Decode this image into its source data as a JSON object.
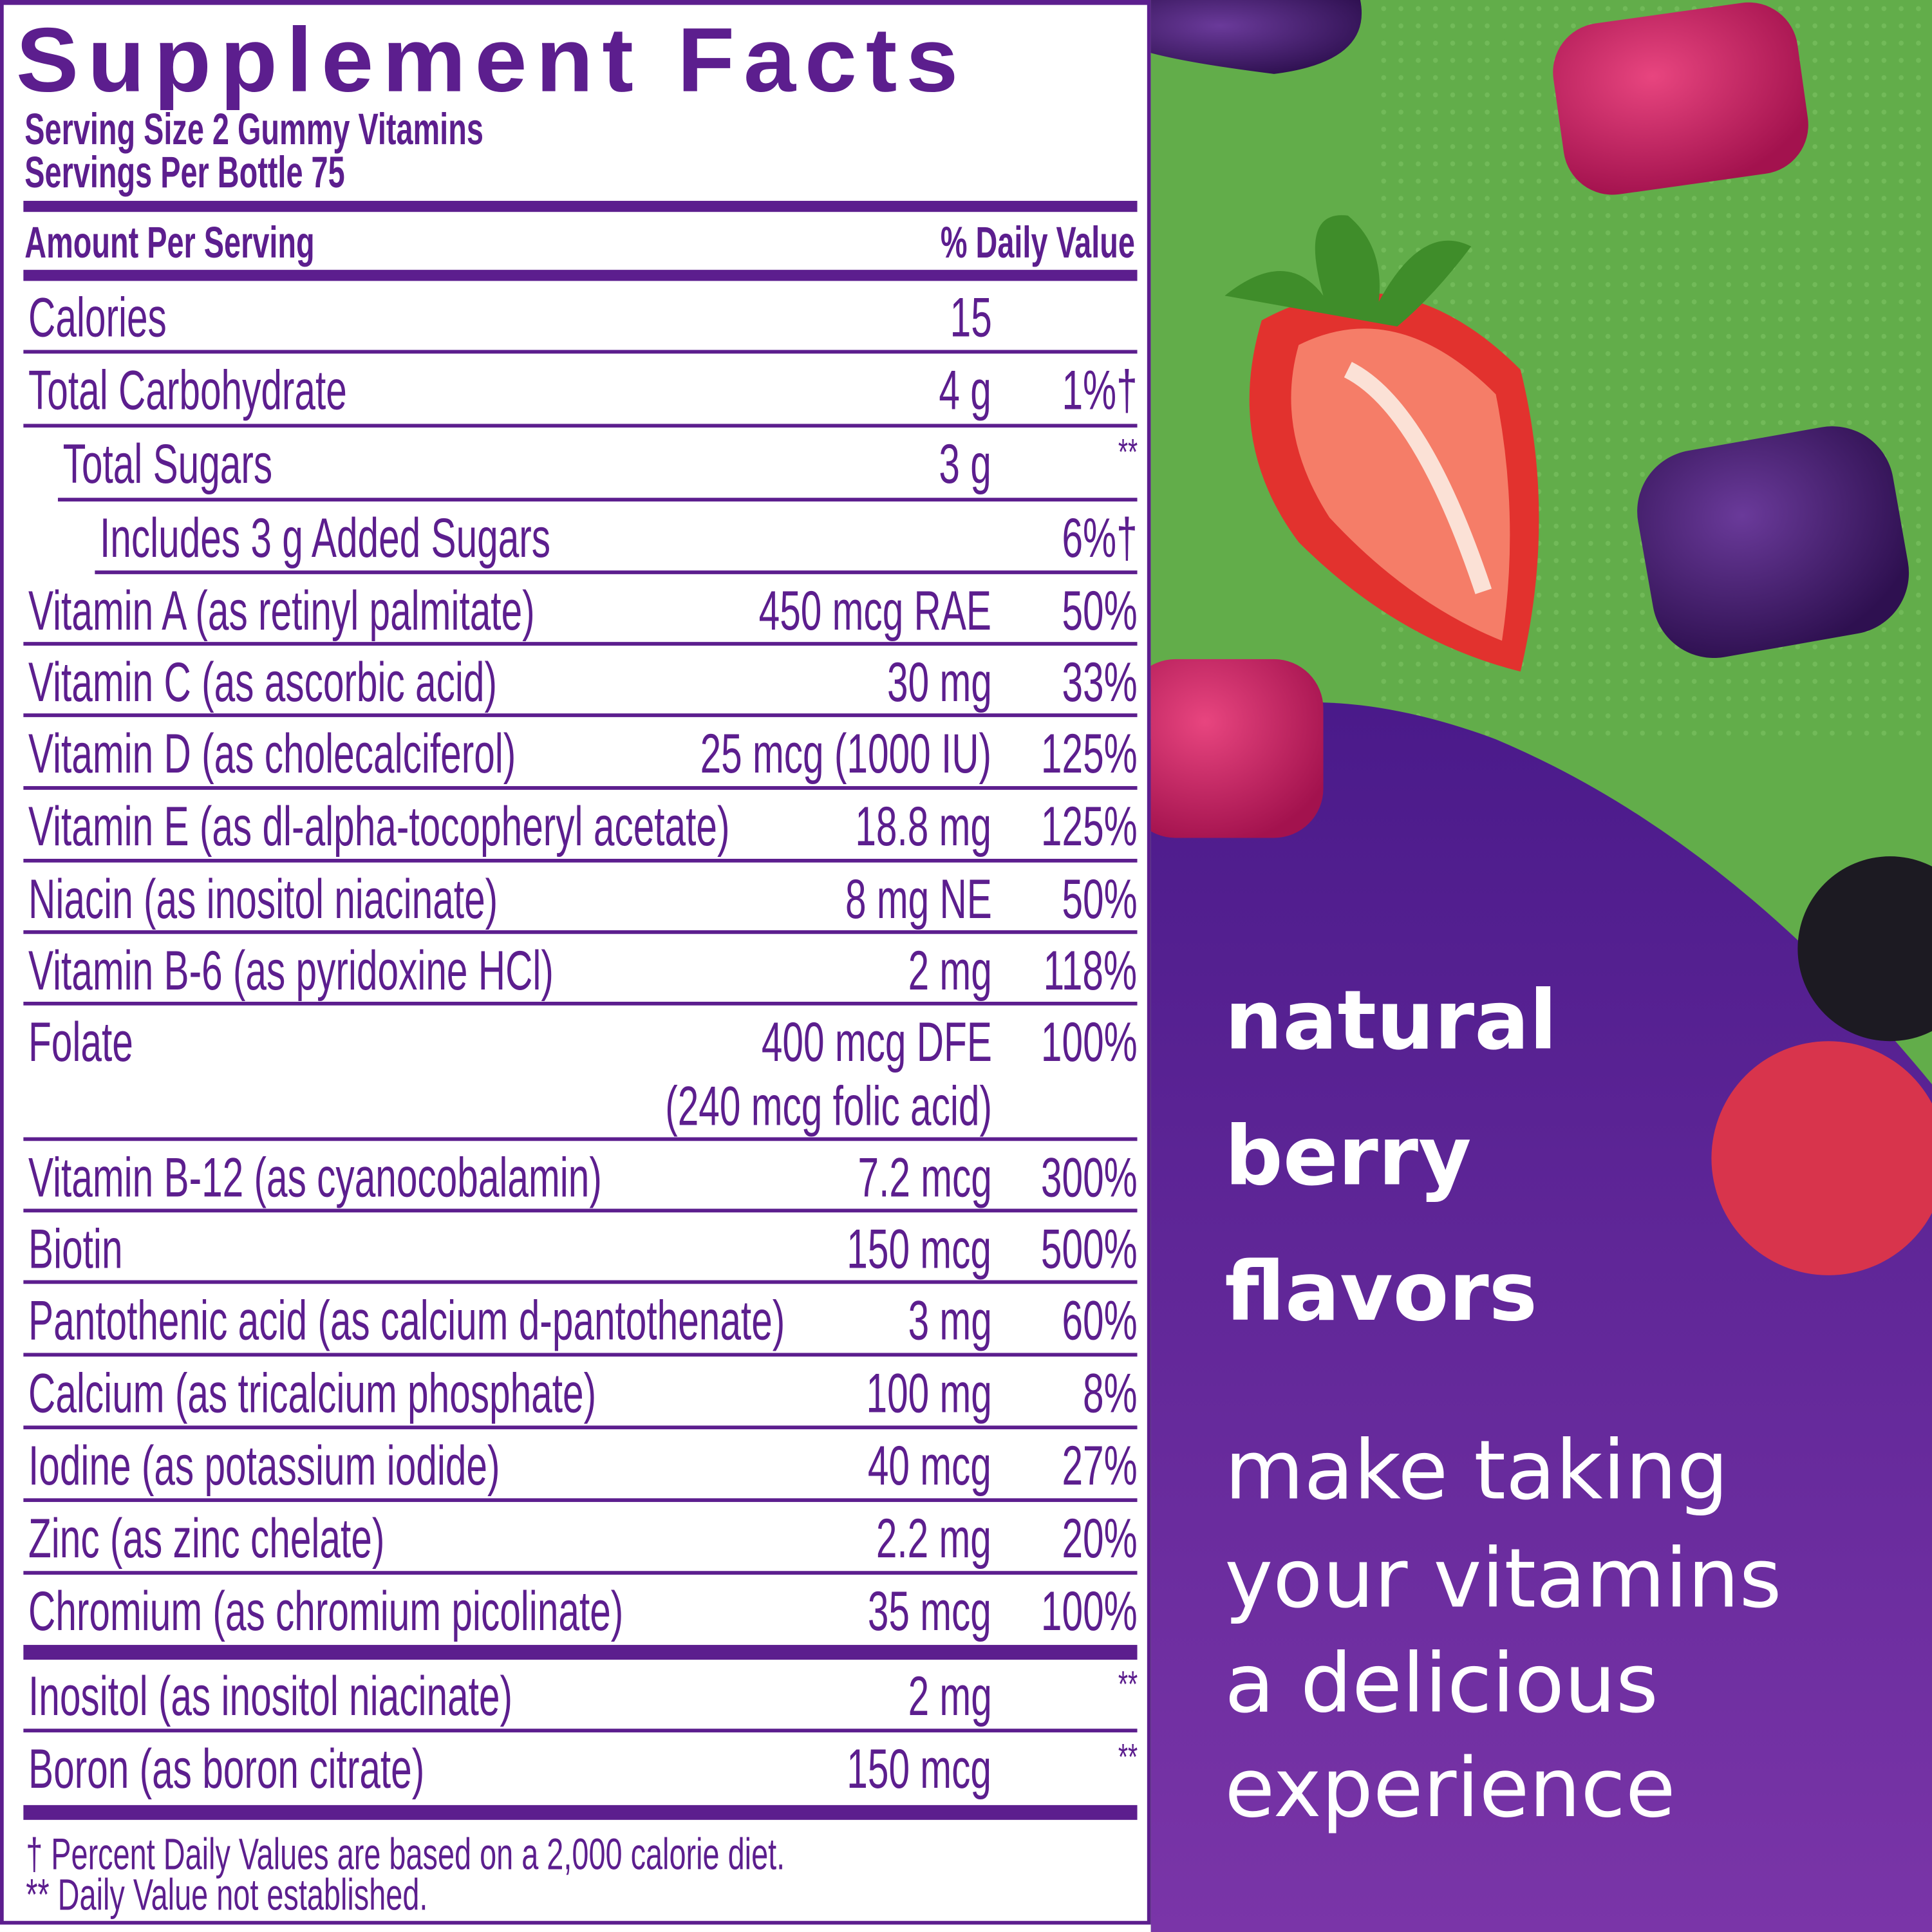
{
  "label": {
    "title": "Supplement Facts",
    "serving_size": "Serving Size 2 Gummy Vitamins",
    "servings_per": "Servings Per Bottle 75",
    "amount_header": "Amount Per Serving",
    "dv_header": "% Daily Value",
    "rows": [
      {
        "name": "Calories",
        "amount": "15",
        "dv": ""
      },
      {
        "name": "Total Carbohydrate",
        "amount": "4 g",
        "dv": "1%†"
      },
      {
        "name": "Total Sugars",
        "amount": "3 g",
        "dv": "**"
      },
      {
        "name": "Includes 3 g Added Sugars",
        "amount": "",
        "dv": "6%†"
      },
      {
        "name": "Vitamin A (as retinyl palmitate)",
        "amount": "450 mcg RAE",
        "dv": "50%"
      },
      {
        "name": "Vitamin C (as ascorbic acid)",
        "amount": "30 mg",
        "dv": "33%"
      },
      {
        "name": "Vitamin D (as cholecalciferol)",
        "amount": "25 mcg (1000 IU)",
        "dv": "125%"
      },
      {
        "name": "Vitamin E (as dl-alpha-tocopheryl acetate)",
        "amount": "18.8 mg",
        "dv": "125%"
      },
      {
        "name": "Niacin (as inositol niacinate)",
        "amount": "8 mg NE",
        "dv": "50%"
      },
      {
        "name": "Vitamin B-6 (as pyridoxine HCl)",
        "amount": "2 mg",
        "dv": "118%"
      },
      {
        "name": "Folate",
        "amount": "400 mcg DFE",
        "sub": "(240 mcg folic acid)",
        "dv": "100%"
      },
      {
        "name": "Vitamin B-12 (as cyanocobalamin)",
        "amount": "7.2 mcg",
        "dv": "300%"
      },
      {
        "name": "Biotin",
        "amount": "150 mcg",
        "dv": "500%"
      },
      {
        "name": "Pantothenic acid (as calcium d-pantothenate)",
        "amount": "3 mg",
        "dv": "60%"
      },
      {
        "name": "Calcium (as tricalcium phosphate)",
        "amount": "100 mg",
        "dv": "8%"
      },
      {
        "name": "Iodine (as potassium iodide)",
        "amount": "40 mcg",
        "dv": "27%"
      },
      {
        "name": "Zinc (as zinc chelate)",
        "amount": "2.2 mg",
        "dv": "20%"
      },
      {
        "name": "Chromium (as chromium picolinate)",
        "amount": "35 mcg",
        "dv": "100%"
      },
      {
        "name": "Inositol (as inositol niacinate)",
        "amount": "2 mg",
        "dv": "**"
      },
      {
        "name": "Boron (as boron citrate)",
        "amount": "150 mcg",
        "dv": "**"
      }
    ],
    "footnote_1": "† Percent Daily Values are based on a 2,000 calorie diet.",
    "footnote_2": "** Daily Value not established."
  },
  "promo": {
    "headline": [
      "natural",
      "berry",
      "flavors"
    ],
    "body": [
      "make taking",
      "your vitamins",
      "a delicious",
      "experience"
    ]
  },
  "colors": {
    "brand_purple": "#5c1e8e",
    "green": "#62ad4a",
    "text_white": "#ffffff"
  }
}
